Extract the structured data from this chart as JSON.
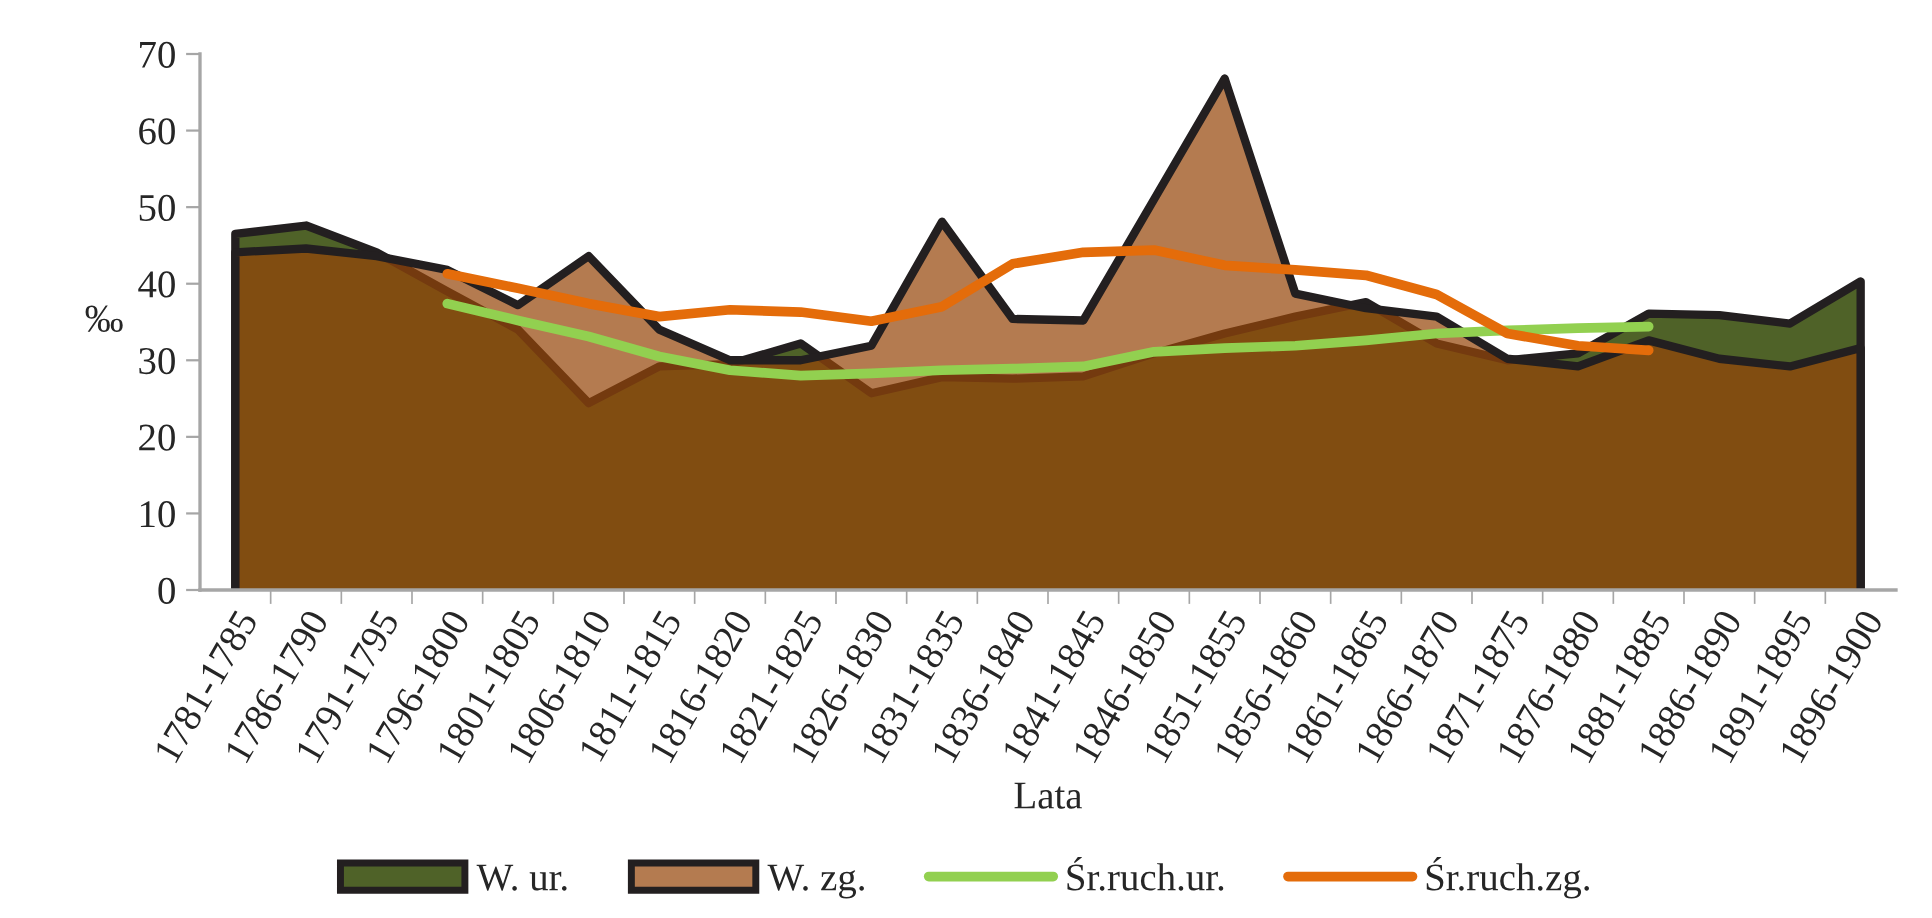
{
  "chart_data": {
    "type": "area",
    "xlabel": "Lata",
    "ylabel": "‰",
    "categories": [
      "1781-1785",
      "1786-1790",
      "1791-1795",
      "1796-1800",
      "1801-1805",
      "1806-1810",
      "1811-1815",
      "1816-1820",
      "1821-1825",
      "1826-1830",
      "1831-1835",
      "1836-1840",
      "1841-1845",
      "1846-1850",
      "1851-1855",
      "1856-1860",
      "1861-1865",
      "1866-1870",
      "1871-1875",
      "1876-1880",
      "1881-1885",
      "1886-1890",
      "1891-1895",
      "1896-1900"
    ],
    "series": [
      {
        "name": "W. ur.",
        "color": "#4f6228",
        "values": [
          46.5,
          47.6,
          44.1,
          39,
          34,
          24.4,
          29.2,
          29.5,
          32.2,
          25.7,
          27.8,
          27.6,
          27.9,
          30.9,
          33.5,
          35.7,
          37.6,
          32.2,
          30,
          30.9,
          36.1,
          35.9,
          34.8,
          40.3
        ]
      },
      {
        "name": "W. zg.",
        "color": "#b47b50",
        "values": [
          44.1,
          44.6,
          43.6,
          41.8,
          37.2,
          43.6,
          34,
          30,
          30,
          31.9,
          48.1,
          35.4,
          35.2,
          51,
          66.8,
          38.7,
          36.8,
          35.7,
          30.2,
          29.2,
          32.6,
          30.2,
          29.2,
          31.6
        ]
      },
      {
        "name": "Śr.ruch.ur.",
        "type": "line",
        "color": "#92d050",
        "values": [
          null,
          null,
          null,
          37.4,
          35.2,
          33.1,
          30.5,
          28.7,
          28,
          28.3,
          28.7,
          28.9,
          29.2,
          31.1,
          31.6,
          31.9,
          32.6,
          33.5,
          33.9,
          34.2,
          34.4,
          null,
          null,
          null
        ]
      },
      {
        "name": "Śr.ruch.zg.",
        "type": "line",
        "color": "#e46c0a",
        "values": [
          null,
          null,
          null,
          41.3,
          39.4,
          37.4,
          35.7,
          36.6,
          36.3,
          35.1,
          37,
          42.6,
          44.1,
          44.4,
          42.4,
          41.8,
          41.1,
          38.6,
          33.5,
          31.9,
          31.3,
          null,
          null,
          null
        ]
      }
    ],
    "ylim": [
      0,
      70
    ],
    "yticks": [
      0,
      10,
      20,
      30,
      40,
      50,
      60,
      70
    ],
    "grid": false,
    "legend": "bottom",
    "line_style": "solid"
  }
}
